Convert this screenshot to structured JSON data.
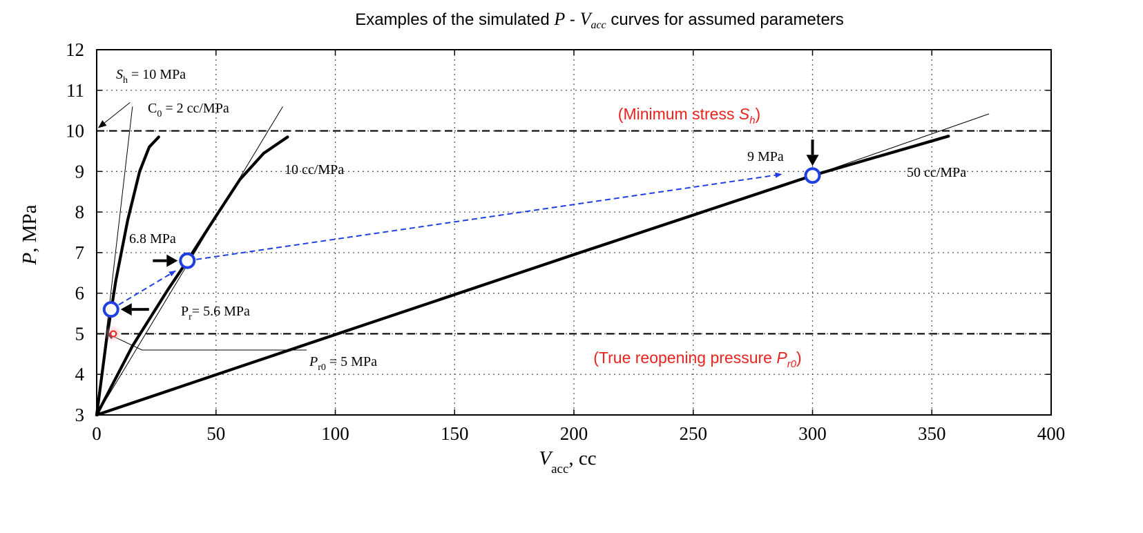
{
  "chart_data": {
    "type": "line",
    "title": "Examples of the simulated P - V_acc curves for assumed parameters",
    "title_parts": {
      "prefix": "Examples of the simulated ",
      "p": "P",
      "dash": " - ",
      "v": "V",
      "v_sub": "acc",
      "suffix": " curves for assumed parameters"
    },
    "xlabel": {
      "main": "V",
      "sub": "acc",
      "suffix": ", cc"
    },
    "ylabel": {
      "main": "P",
      "suffix": ", MPa"
    },
    "xlim": [
      0,
      400
    ],
    "ylim": [
      3,
      12
    ],
    "xticks": [
      0,
      50,
      100,
      150,
      200,
      250,
      300,
      350,
      400
    ],
    "yticks": [
      3,
      4,
      5,
      6,
      7,
      8,
      9,
      10,
      11,
      12
    ],
    "grid": "dotted",
    "series": [
      {
        "name": "2 cc/MPa",
        "points": [
          [
            0,
            3
          ],
          [
            4,
            4.8
          ],
          [
            8,
            6.3
          ],
          [
            13,
            7.8
          ],
          [
            18,
            9.0
          ],
          [
            22,
            9.6
          ],
          [
            26,
            9.85
          ]
        ]
      },
      {
        "name": "10 cc/MPa",
        "points": [
          [
            0,
            3
          ],
          [
            15,
            4.7
          ],
          [
            30,
            6.1
          ],
          [
            38,
            6.8
          ],
          [
            50,
            7.9
          ],
          [
            60,
            8.8
          ],
          [
            70,
            9.45
          ],
          [
            80,
            9.85
          ]
        ]
      },
      {
        "name": "50 cc/MPa",
        "points": [
          [
            0,
            3
          ],
          [
            100,
            4.98
          ],
          [
            200,
            6.95
          ],
          [
            300,
            8.9
          ],
          [
            357,
            9.87
          ]
        ]
      }
    ],
    "tangents": [
      {
        "name": "C0 tangent 2 cc/MPa",
        "from": [
          0,
          3
        ],
        "to": [
          15,
          10.6
        ]
      },
      {
        "name": "10 cc/MPa tangent",
        "from": [
          0,
          3
        ],
        "to": [
          78,
          10.6
        ]
      },
      {
        "name": "50 cc/MPa tangent",
        "from": [
          300,
          8.9
        ],
        "to": [
          374,
          10.42
        ]
      }
    ],
    "hlines": [
      {
        "name": "minimum stress",
        "y": 10,
        "label": "(Minimum stress ",
        "italic": "S",
        "sub": "h",
        "close": ")"
      },
      {
        "name": "true reopening pressure",
        "y": 5,
        "label": "(True reopening pressure ",
        "italic": "P",
        "sub": "r0",
        "close": ")"
      }
    ],
    "markers": [
      {
        "name": "Pr 5.6 MPa",
        "x": 6,
        "y": 5.6
      },
      {
        "name": "6.8 MPa",
        "x": 38,
        "y": 6.8
      },
      {
        "name": "9 MPa",
        "x": 300,
        "y": 8.9
      }
    ],
    "red_marker": {
      "name": "Pr0 point",
      "x": 7,
      "y": 5.0
    },
    "blue_arrows": [
      {
        "from": [
          6,
          5.6
        ],
        "to": [
          33,
          6.55
        ]
      },
      {
        "from": [
          38,
          6.8
        ],
        "to": [
          287,
          8.93
        ]
      }
    ],
    "annotations": {
      "sh": {
        "main": "S",
        "sub": "h",
        "rest": " = 10 MPa"
      },
      "c0": {
        "main": "C",
        "sub": "0",
        "rest": " = 2 cc/MPa"
      },
      "c10": "10 cc/MPa",
      "c50": "50 cc/MPa",
      "p9": "9 MPa",
      "p68": "6.8 MPa",
      "pr": {
        "main": "P",
        "sub": "r",
        "rest": "= 5.6 MPa"
      },
      "pr0": {
        "main": "P",
        "sub": "r0",
        "rest": " = 5 MPa"
      }
    },
    "colors": {
      "line": "#000000",
      "marker": "#1f3fe0",
      "arrow": "#1f3fe0",
      "red": "#e8231f",
      "grid": "#555555"
    }
  }
}
